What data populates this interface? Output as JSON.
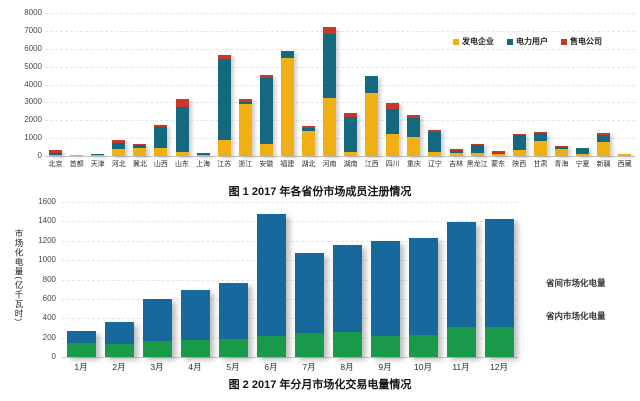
{
  "page": {
    "background": "#ffffff"
  },
  "chart_data": [
    {
      "type": "bar",
      "stacked": true,
      "title": "图 1  2017 年各省份市场成员注册情况",
      "xlabel": "",
      "ylabel": "",
      "ylim": [
        0,
        8000
      ],
      "ytick_step": 1000,
      "ytick_labels": [
        "0",
        "1000",
        "2000",
        "3000",
        "4000",
        "5000",
        "6000",
        "7000",
        "8000"
      ],
      "grid": true,
      "legend_position": "top-right-inside",
      "categories": [
        "北京",
        "首都",
        "天津",
        "河北",
        "冀北",
        "山西",
        "山东",
        "上海",
        "江苏",
        "浙江",
        "安徽",
        "福建",
        "湖北",
        "河南",
        "湖南",
        "江西",
        "四川",
        "重庆",
        "辽宁",
        "吉林",
        "黑龙江",
        "蒙东",
        "陕西",
        "甘肃",
        "青海",
        "宁夏",
        "新疆",
        "西藏"
      ],
      "series": [
        {
          "name": "发电企业",
          "color": "#f0af13",
          "values": [
            80,
            30,
            30,
            375,
            430,
            450,
            205,
            40,
            900,
            2900,
            690,
            5500,
            1400,
            3250,
            250,
            3550,
            1250,
            1080,
            220,
            150,
            150,
            100,
            360,
            845,
            415,
            130,
            785,
            95
          ]
        },
        {
          "name": "电力用户",
          "color": "#15697f",
          "values": [
            90,
            45,
            100,
            355,
            175,
            1160,
            2545,
            110,
            4510,
            150,
            3690,
            400,
            180,
            3550,
            1950,
            900,
            1400,
            1070,
            1150,
            150,
            480,
            80,
            820,
            435,
            110,
            320,
            415,
            0
          ]
        },
        {
          "name": "售电公司",
          "color": "#c4392a",
          "values": [
            190,
            0,
            0,
            150,
            50,
            150,
            450,
            0,
            245,
            150,
            150,
            0,
            120,
            400,
            200,
            50,
            300,
            150,
            80,
            80,
            70,
            100,
            75,
            70,
            25,
            0,
            90,
            0
          ]
        }
      ]
    },
    {
      "type": "bar",
      "stacked": true,
      "title": "图 2  2017 年分月市场化交易电量情况",
      "xlabel": "",
      "ylabel": "市场化电量(亿千瓦时)",
      "ylim": [
        0,
        1600
      ],
      "ytick_step": 200,
      "ytick_labels": [
        "0",
        "200",
        "400",
        "600",
        "800",
        "1000",
        "1200",
        "1400",
        "1600"
      ],
      "grid": true,
      "legend_position": "right-outside",
      "categories": [
        "1月",
        "2月",
        "3月",
        "4月",
        "5月",
        "6月",
        "7月",
        "8月",
        "9月",
        "10月",
        "11月",
        "12月"
      ],
      "series": [
        {
          "name": "省间市场化电量",
          "color": "#189a4a",
          "values": [
            140,
            135,
            170,
            180,
            190,
            215,
            245,
            255,
            220,
            230,
            310,
            305
          ]
        },
        {
          "name": "省内市场化电量",
          "color": "#17699c",
          "values": [
            130,
            225,
            425,
            510,
            570,
            1265,
            825,
            905,
            980,
            1000,
            1085,
            1115
          ]
        }
      ]
    }
  ]
}
